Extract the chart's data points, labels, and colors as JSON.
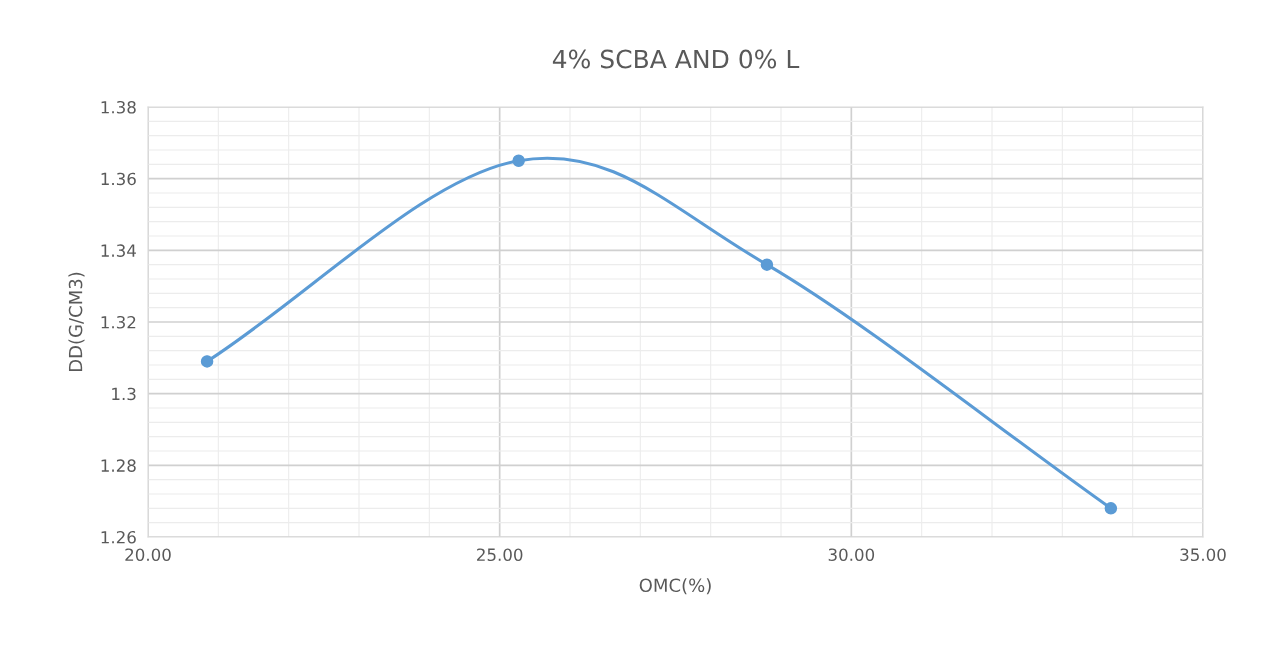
{
  "chart_data": {
    "type": "line",
    "title": "4% SCBA AND 0% L",
    "xlabel": "OMC(%)",
    "ylabel": "DD(G/CM3)",
    "series": [
      {
        "color": "#5b9bd5",
        "x": [
          20.84,
          25.27,
          28.8,
          33.69
        ],
        "values": [
          1.309,
          1.365,
          1.336,
          1.268
        ]
      }
    ],
    "xlim": [
      20,
      35
    ],
    "xticks": [
      {
        "value": 20,
        "label": "20.00"
      },
      {
        "value": 25,
        "label": "25.00"
      },
      {
        "value": 30,
        "label": "30.00"
      },
      {
        "value": 35,
        "label": "35.00"
      }
    ],
    "ylim": [
      1.26,
      1.38
    ],
    "yticks": [
      1.26,
      1.28,
      1.3,
      1.32,
      1.34,
      1.36,
      1.38
    ],
    "grid": true,
    "marker": "circle",
    "line_style": "solid"
  }
}
